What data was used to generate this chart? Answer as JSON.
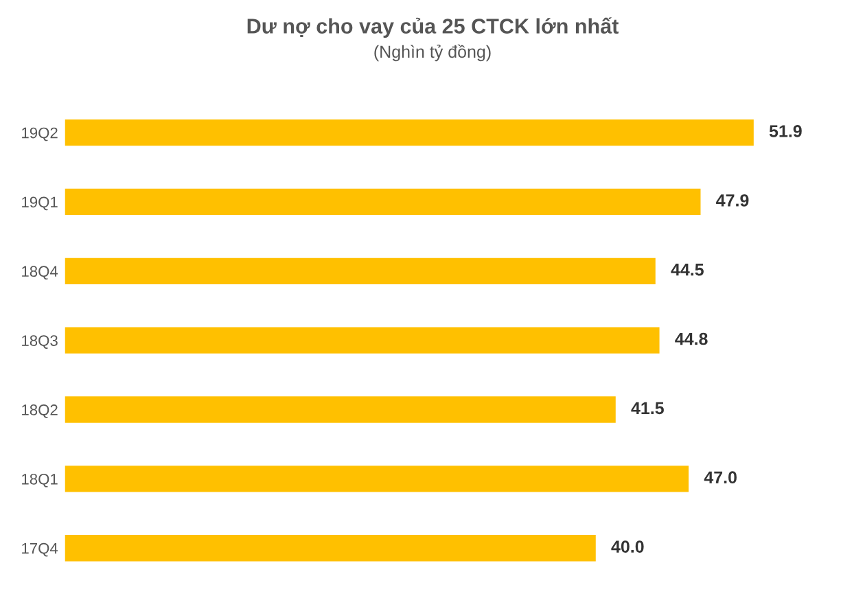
{
  "chart_data": {
    "type": "bar",
    "orientation": "horizontal",
    "title": "Dư nợ cho vay của 25 CTCK lớn nhất",
    "subtitle": "(Nghìn tỷ đồng)",
    "categories": [
      "19Q2",
      "19Q1",
      "18Q4",
      "18Q3",
      "18Q2",
      "18Q1",
      "17Q4"
    ],
    "values": [
      51.9,
      47.9,
      44.5,
      44.8,
      41.5,
      47.0,
      40.0
    ],
    "value_labels": [
      "51.9",
      "47.9",
      "44.5",
      "44.8",
      "41.5",
      "47.0",
      "40.0"
    ],
    "color": "#ffc000",
    "grid": false
  }
}
